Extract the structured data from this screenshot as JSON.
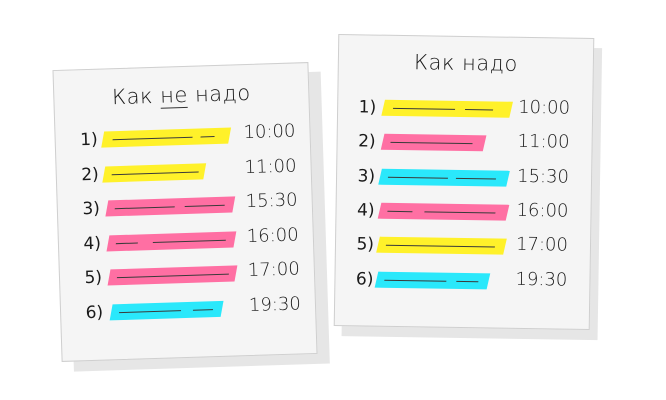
{
  "colors": {
    "yellow": "#fff12a",
    "pink": "#ff6fa3",
    "cyan": "#2ae8fb",
    "paper": "#f5f5f5"
  },
  "left_sheet": {
    "title_before": "Как ",
    "title_underlined": "не",
    "title_after": " надо",
    "items": [
      {
        "num": "1)",
        "color": "yellow",
        "time": "10:00"
      },
      {
        "num": "2)",
        "color": "yellow",
        "time": "11:00"
      },
      {
        "num": "3)",
        "color": "pink",
        "time": "15:30"
      },
      {
        "num": "4)",
        "color": "pink",
        "time": "16:00"
      },
      {
        "num": "5)",
        "color": "pink",
        "time": "17:00"
      },
      {
        "num": "6)",
        "color": "cyan",
        "time": "19:30"
      }
    ]
  },
  "right_sheet": {
    "title": "Как надо",
    "items": [
      {
        "num": "1)",
        "color": "yellow",
        "time": "10:00"
      },
      {
        "num": "2)",
        "color": "pink",
        "time": "11:00"
      },
      {
        "num": "3)",
        "color": "cyan",
        "time": "15:30"
      },
      {
        "num": "4)",
        "color": "pink",
        "time": "16:00"
      },
      {
        "num": "5)",
        "color": "yellow",
        "time": "17:00"
      },
      {
        "num": "6)",
        "color": "cyan",
        "time": "19:30"
      }
    ]
  }
}
